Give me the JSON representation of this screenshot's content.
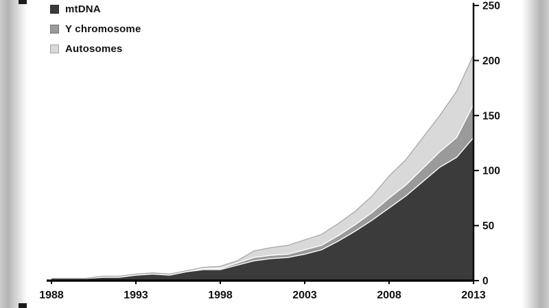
{
  "chart_data": {
    "type": "area",
    "stacked": true,
    "title": "",
    "xlabel": "",
    "ylabel": "",
    "x": [
      1988,
      1989,
      1990,
      1991,
      1992,
      1993,
      1994,
      1995,
      1996,
      1997,
      1998,
      1999,
      2000,
      2001,
      2002,
      2003,
      2004,
      2005,
      2006,
      2007,
      2008,
      2009,
      2010,
      2011,
      2012,
      2013
    ],
    "series": [
      {
        "name": "mtDNA",
        "color": "#3b3b3b",
        "values": [
          2,
          2,
          2,
          3,
          3,
          5,
          6,
          5,
          8,
          10,
          10,
          14,
          18,
          20,
          21,
          24,
          28,
          36,
          45,
          55,
          66,
          77,
          90,
          103,
          112,
          130
        ]
      },
      {
        "name": "Y chromosome",
        "color": "#9a9a9a",
        "values": [
          0,
          0,
          0,
          1,
          1,
          1,
          1,
          1,
          1,
          1,
          1,
          2,
          3,
          3,
          3,
          4,
          4,
          5,
          6,
          7,
          9,
          10,
          12,
          14,
          18,
          30
        ]
      },
      {
        "name": "Autosomes",
        "color": "#d9d9d9",
        "values": [
          0,
          0,
          0,
          0,
          0,
          0,
          0,
          0,
          0,
          1,
          2,
          2,
          6,
          7,
          8,
          9,
          10,
          11,
          12,
          15,
          20,
          23,
          28,
          33,
          42,
          45
        ]
      }
    ],
    "xticks": [
      1988,
      1993,
      1998,
      2003,
      2008,
      2013
    ],
    "yticks": [
      0,
      50,
      100,
      150,
      200,
      250
    ],
    "xlim": [
      1988,
      2013
    ],
    "ylim": [
      0,
      250
    ],
    "grid": false,
    "legend_position": "top-left",
    "y_axis_side": "right"
  }
}
